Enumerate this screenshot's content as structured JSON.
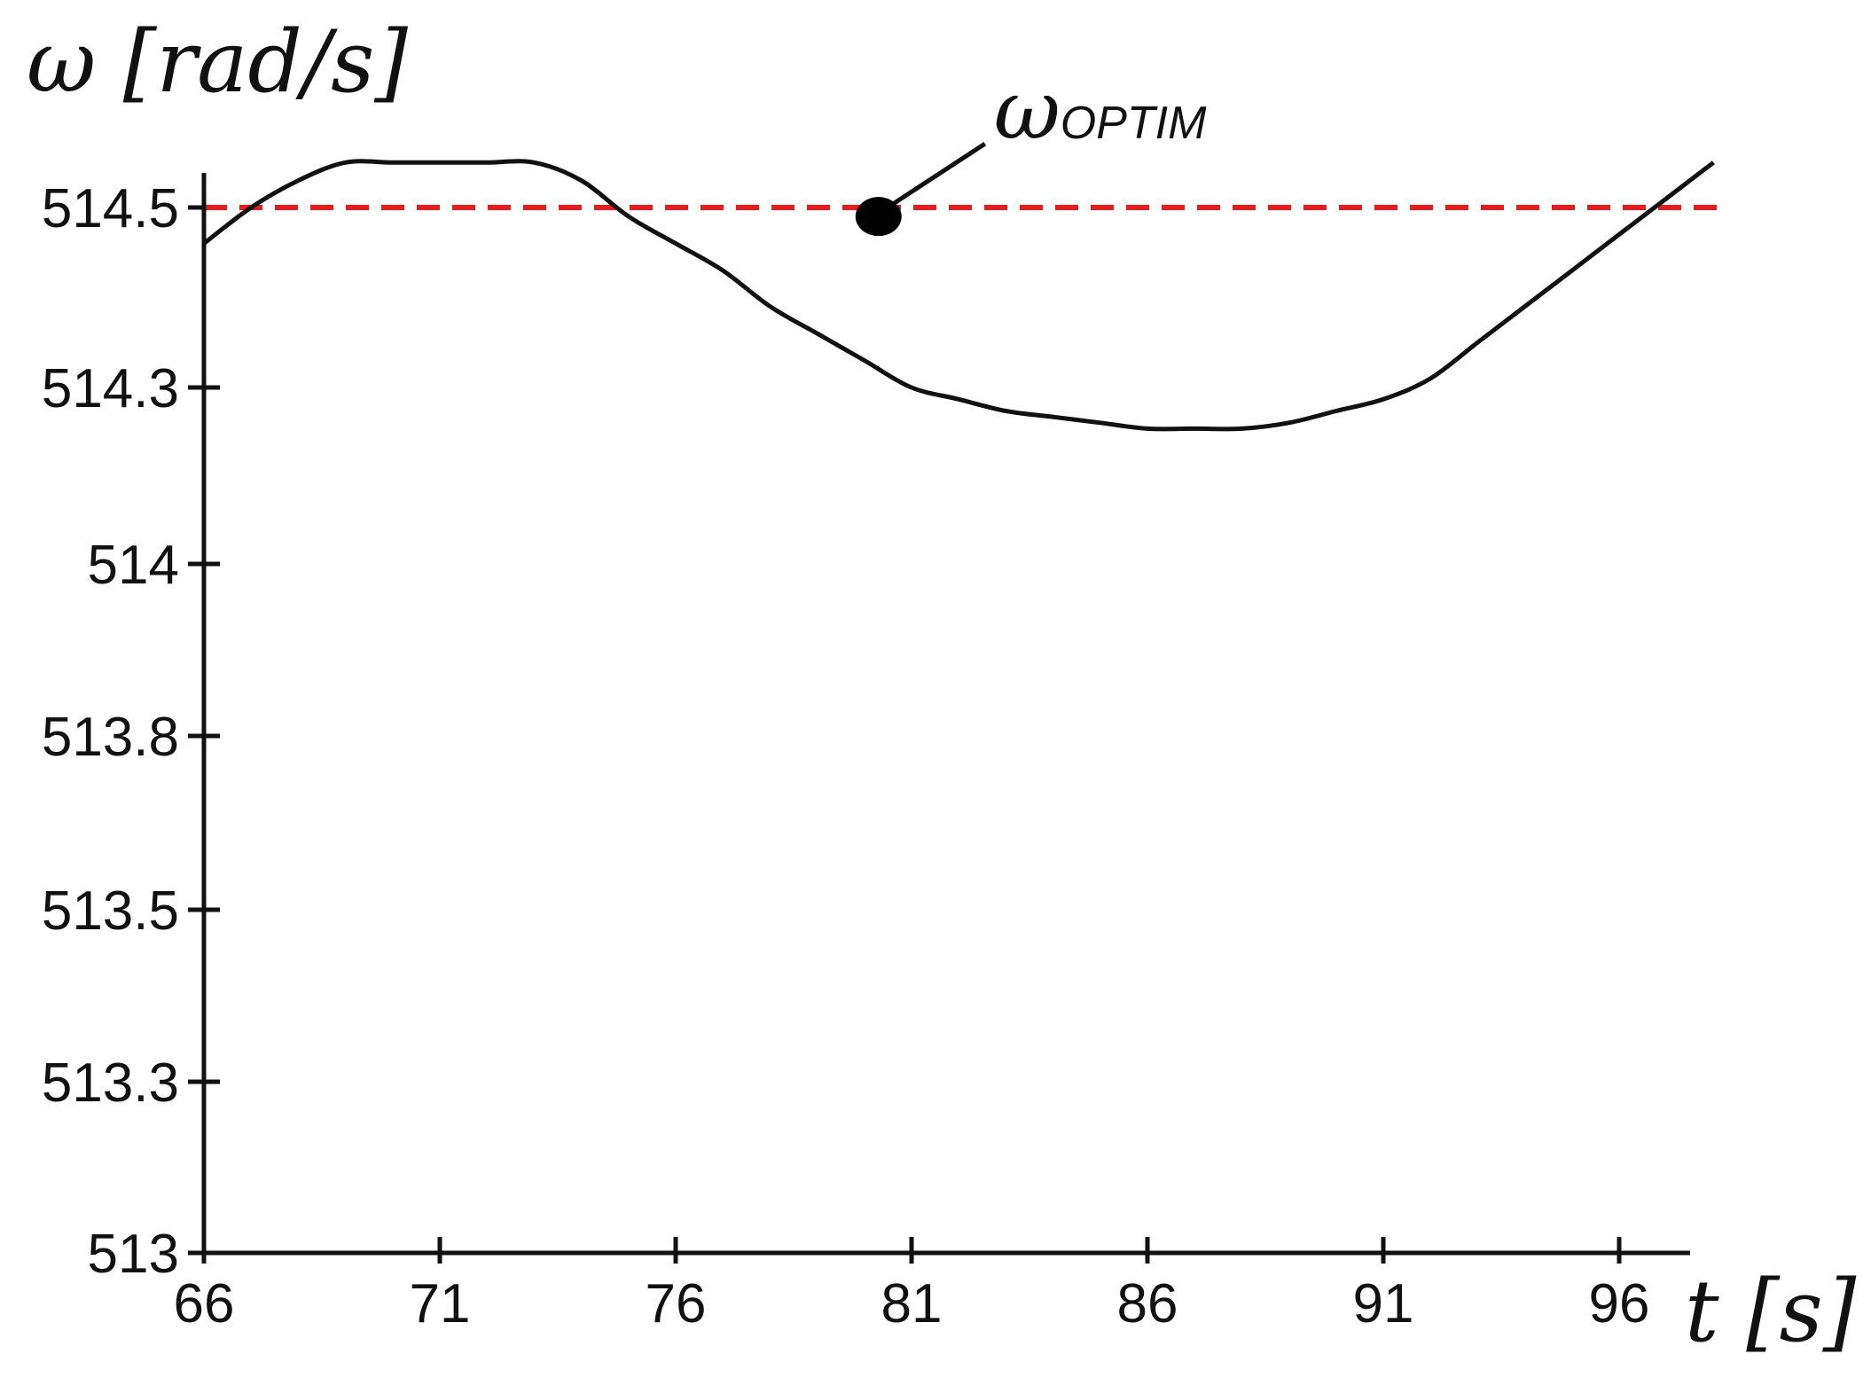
{
  "chart_data": {
    "type": "line",
    "title": "",
    "ylabel": "ω [rad/s]",
    "xlabel": "t [s]",
    "xlim": [
      66,
      98.5
    ],
    "ylim": [
      513,
      514.6
    ],
    "x_ticks": [
      66,
      71,
      76,
      81,
      86,
      91,
      96
    ],
    "y_ticks": [
      513,
      513.3,
      513.5,
      513.8,
      514,
      514.3,
      514.5
    ],
    "y_tick_labels": [
      "513",
      "513.3",
      "513.5",
      "513.8",
      "514",
      "514.3",
      "514.5"
    ],
    "grid": false,
    "series": [
      {
        "type": "line",
        "color": "#111111",
        "points": [
          [
            66,
            514.46
          ],
          [
            67,
            514.5
          ],
          [
            68,
            514.53
          ],
          [
            69,
            514.55
          ],
          [
            70,
            514.55
          ],
          [
            71,
            514.55
          ],
          [
            72,
            514.55
          ],
          [
            73,
            514.55
          ],
          [
            74,
            514.53
          ],
          [
            75,
            514.49
          ],
          [
            76,
            514.46
          ],
          [
            77,
            514.43
          ],
          [
            78,
            514.39
          ],
          [
            79,
            514.36
          ],
          [
            80,
            514.33
          ],
          [
            81,
            514.3
          ],
          [
            82,
            514.28
          ],
          [
            83,
            514.26
          ],
          [
            84,
            514.25
          ],
          [
            85,
            514.24
          ],
          [
            86,
            514.23
          ],
          [
            87,
            514.23
          ],
          [
            88,
            514.23
          ],
          [
            89,
            514.24
          ],
          [
            90,
            514.26
          ],
          [
            91,
            514.28
          ],
          [
            92,
            514.31
          ],
          [
            93,
            514.35
          ],
          [
            94,
            514.39
          ],
          [
            95,
            514.43
          ],
          [
            96,
            514.47
          ],
          [
            97,
            514.51
          ],
          [
            98,
            514.55
          ]
        ]
      }
    ],
    "reference_line": {
      "y": 514.5,
      "color": "#e81c1c",
      "style": "dashed"
    },
    "annotation": {
      "symbol": "ω",
      "subscript": "OPTIM",
      "marker_point": [
        80.3,
        514.49
      ]
    }
  }
}
